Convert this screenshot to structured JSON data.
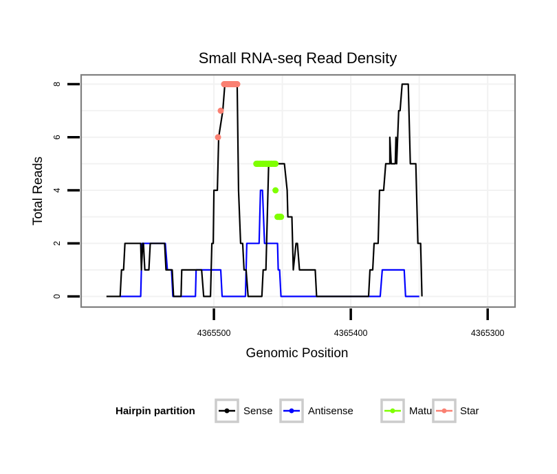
{
  "chart_data": {
    "type": "line",
    "title": "Small RNA-seq Read Density",
    "xlabel": "Genomic Position",
    "ylabel": "Total Reads",
    "x_reversed": true,
    "xlim": [
      4365597,
      4365280
    ],
    "ylim": [
      -0.4,
      8.35
    ],
    "x_ticks": [
      4365500,
      4365400,
      4365300
    ],
    "x_tick_labels": [
      "4365500",
      "4365400",
      "4365300"
    ],
    "y_ticks": [
      0,
      2,
      4,
      6,
      8
    ],
    "y_tick_labels": [
      "0",
      "2",
      "4",
      "6",
      "8"
    ],
    "grid": true,
    "legend": {
      "title": "Hairpin partition",
      "position": "bottom",
      "entries": [
        {
          "name": "Sense",
          "color": "#000000"
        },
        {
          "name": "Antisense",
          "color": "#0000FF"
        },
        {
          "name": "Mature",
          "color": "#7FFF00"
        },
        {
          "name": "Star",
          "color": "#FA8072"
        }
      ]
    },
    "series": [
      {
        "name": "Sense",
        "color": "#000000",
        "points": [
          [
            4365578.5,
            0
          ],
          [
            4365568.5,
            0
          ],
          [
            4365567.5,
            1
          ],
          [
            4365566,
            1
          ],
          [
            4365565,
            2
          ],
          [
            4365553.5,
            2
          ],
          [
            4365553,
            1
          ],
          [
            4365552,
            2
          ],
          [
            4365551.5,
            2
          ],
          [
            4365550.5,
            1
          ],
          [
            4365547.5,
            1
          ],
          [
            4365546.5,
            2
          ],
          [
            4365536,
            2
          ],
          [
            4365535,
            1
          ],
          [
            4365530.5,
            1
          ],
          [
            4365529.5,
            0
          ],
          [
            4365524,
            0
          ],
          [
            4365523.5,
            1
          ],
          [
            4365509,
            1
          ],
          [
            4365507.5,
            0
          ],
          [
            4365502.5,
            0
          ],
          [
            4365501.5,
            2
          ],
          [
            4365500.5,
            2
          ],
          [
            4365500,
            4
          ],
          [
            4365497.5,
            4
          ],
          [
            4365496.5,
            6
          ],
          [
            4365493.5,
            7
          ],
          [
            4365492,
            8
          ],
          [
            4365483,
            8
          ],
          [
            4365482,
            4
          ],
          [
            4365480.5,
            2
          ],
          [
            4365479,
            2
          ],
          [
            4365478,
            1
          ],
          [
            4365476.5,
            1
          ],
          [
            4365475,
            0
          ],
          [
            4365465,
            0
          ],
          [
            4365464,
            1
          ],
          [
            4365462,
            1
          ],
          [
            4365460,
            5
          ],
          [
            4365448.5,
            5
          ],
          [
            4365446.5,
            4
          ],
          [
            4365446,
            3
          ],
          [
            4365443,
            3
          ],
          [
            4365442,
            1
          ],
          [
            4365440,
            2
          ],
          [
            4365439,
            2
          ],
          [
            4365437.5,
            1
          ],
          [
            4365426,
            1
          ],
          [
            4365425,
            0
          ],
          [
            4365387,
            0
          ],
          [
            4365386,
            1
          ],
          [
            4365384,
            1
          ],
          [
            4365383,
            2
          ],
          [
            4365380,
            2
          ],
          [
            4365379,
            4
          ],
          [
            4365376,
            4
          ],
          [
            4365374.5,
            5
          ],
          [
            4365371.5,
            5
          ],
          [
            4365371.5,
            6
          ],
          [
            4365370.5,
            5
          ],
          [
            4365367.5,
            5
          ],
          [
            4365367,
            6
          ],
          [
            4365366.5,
            5
          ],
          [
            4365365,
            7
          ],
          [
            4365364,
            7
          ],
          [
            4365362.5,
            8
          ],
          [
            4365358,
            8
          ],
          [
            4365356.5,
            5
          ],
          [
            4365352.5,
            5
          ],
          [
            4365351,
            2
          ],
          [
            4365349,
            2
          ],
          [
            4365348,
            0
          ]
        ]
      },
      {
        "name": "Antisense",
        "color": "#0000FF",
        "points": [
          [
            4365568.5,
            0
          ],
          [
            4365553.5,
            0
          ],
          [
            4365552.5,
            2
          ],
          [
            4365535.5,
            2
          ],
          [
            4365534,
            1
          ],
          [
            4365531,
            1
          ],
          [
            4365530,
            0
          ],
          [
            4365513.5,
            0
          ],
          [
            4365513,
            1
          ],
          [
            4365495,
            1
          ],
          [
            4365494,
            0
          ],
          [
            4365477,
            0
          ],
          [
            4365476,
            2
          ],
          [
            4365467,
            2
          ],
          [
            4365466,
            4
          ],
          [
            4365464.5,
            4
          ],
          [
            4365463,
            2
          ],
          [
            4365453.5,
            2
          ],
          [
            4365453,
            1
          ],
          [
            4365452,
            1
          ],
          [
            4365451,
            0
          ],
          [
            4365425,
            0
          ],
          [
            4365425,
            0
          ],
          [
            4365388,
            0
          ],
          [
            4365378.5,
            0
          ],
          [
            4365377,
            1
          ],
          [
            4365361,
            1
          ],
          [
            4365360,
            0
          ],
          [
            4365350,
            0
          ]
        ]
      },
      {
        "name": "Mature",
        "color": "#7FFF00",
        "points": [
          [
            4365469,
            5
          ],
          [
            4365468,
            5
          ],
          [
            4365466,
            5
          ],
          [
            4365464,
            5
          ],
          [
            4365462,
            5
          ],
          [
            4365460,
            5
          ],
          [
            4365458,
            5
          ],
          [
            4365456,
            5
          ],
          [
            4365455,
            5
          ],
          [
            4365455,
            4
          ],
          [
            4365453.5,
            3
          ],
          [
            4365452,
            3
          ],
          [
            4365451,
            3
          ]
        ]
      },
      {
        "name": "Star",
        "color": "#FA8072",
        "points": [
          [
            4365497,
            6
          ],
          [
            4365495,
            7
          ],
          [
            4365492.5,
            8
          ],
          [
            4365490,
            8
          ],
          [
            4365488,
            8
          ],
          [
            4365486,
            8
          ],
          [
            4365484,
            8
          ],
          [
            4365483,
            8
          ]
        ]
      }
    ]
  }
}
